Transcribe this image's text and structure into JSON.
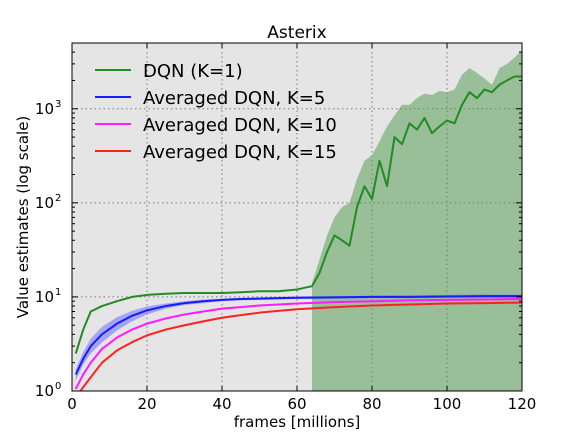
{
  "chart_data": {
    "type": "line",
    "title": "Asterix",
    "xlabel": "frames [millions]",
    "ylabel": "Value estimates (log scale)",
    "xlim": [
      0,
      120
    ],
    "ylim": [
      1,
      5000
    ],
    "yscale": "log",
    "grid": true,
    "legend_position": "top-left",
    "background_color": "#e5e5e5",
    "x_ticks": [
      0,
      20,
      40,
      60,
      80,
      100,
      120
    ],
    "x_tick_labels": [
      "0",
      "20",
      "40",
      "60",
      "80",
      "100",
      "120"
    ],
    "y_ticks": [
      1,
      10,
      100,
      1000
    ],
    "y_tick_labels": [
      {
        "base": "10",
        "exp": "0"
      },
      {
        "base": "10",
        "exp": "1"
      },
      {
        "base": "10",
        "exp": "2"
      },
      {
        "base": "10",
        "exp": "3"
      }
    ],
    "series": [
      {
        "name": "DQN (K=1)",
        "color": "#228b22",
        "band_color": "#4c9a4c",
        "x": [
          1,
          3,
          5,
          8,
          12,
          16,
          20,
          25,
          30,
          35,
          40,
          45,
          50,
          55,
          60,
          62,
          64,
          66,
          68,
          70,
          72,
          74,
          76,
          78,
          80,
          82,
          84,
          86,
          88,
          90,
          92,
          94,
          96,
          98,
          100,
          102,
          104,
          106,
          108,
          110,
          112,
          114,
          116,
          118,
          120
        ],
        "values": [
          2.5,
          4.5,
          7,
          8,
          9,
          10,
          10.5,
          10.8,
          11,
          11,
          11,
          11.2,
          11.5,
          11.5,
          12,
          12.5,
          13,
          18,
          30,
          45,
          40,
          35,
          90,
          150,
          110,
          280,
          150,
          500,
          420,
          700,
          600,
          800,
          550,
          650,
          750,
          700,
          1100,
          1500,
          1300,
          1600,
          1500,
          1800,
          2000,
          2200,
          2200
        ],
        "band_x": [
          64,
          66,
          68,
          70,
          72,
          74,
          76,
          78,
          80,
          82,
          84,
          86,
          88,
          90,
          92,
          94,
          96,
          98,
          100,
          102,
          104,
          106,
          108,
          110,
          112,
          114,
          116,
          118,
          120
        ],
        "band_upper": [
          14,
          25,
          45,
          70,
          90,
          100,
          180,
          280,
          320,
          450,
          650,
          850,
          1100,
          1100,
          1300,
          1450,
          1400,
          1550,
          1500,
          1600,
          2300,
          2700,
          2400,
          2100,
          1800,
          2700,
          3000,
          3500,
          4200
        ],
        "band_lower": [
          1,
          1,
          1,
          1,
          1,
          1,
          1,
          1,
          1,
          1,
          1,
          1,
          1,
          1,
          1,
          1,
          1,
          1,
          1,
          1,
          1,
          1,
          1,
          1,
          1,
          1,
          1,
          1,
          1
        ]
      },
      {
        "name": "Averaged DQN, K=5",
        "color": "#1a1aff",
        "band_color": "#7070ff",
        "x": [
          1,
          3,
          5,
          8,
          12,
          16,
          20,
          25,
          30,
          35,
          40,
          45,
          50,
          55,
          60,
          70,
          80,
          90,
          100,
          110,
          120
        ],
        "values": [
          1.5,
          2.2,
          3,
          4,
          5.2,
          6.3,
          7.2,
          8,
          8.6,
          9,
          9.3,
          9.5,
          9.6,
          9.7,
          9.8,
          9.9,
          10,
          10,
          10.1,
          10.2,
          10.2
        ],
        "band_x": [
          1,
          3,
          5,
          8,
          12,
          16,
          20,
          25,
          30,
          35,
          40,
          45,
          50,
          55,
          60,
          70,
          80,
          90,
          100,
          110,
          120
        ],
        "band_upper": [
          1.7,
          2.6,
          3.6,
          4.8,
          6.1,
          7.1,
          7.9,
          8.5,
          9,
          9.4,
          9.6,
          9.8,
          9.9,
          10,
          10.1,
          10.2,
          10.3,
          10.4,
          10.5,
          10.6,
          10.6
        ],
        "band_lower": [
          1.3,
          1.9,
          2.5,
          3.3,
          4.4,
          5.5,
          6.5,
          7.5,
          8.2,
          8.6,
          9,
          9.2,
          9.3,
          9.4,
          9.5,
          9.6,
          9.7,
          9.7,
          9.8,
          9.8,
          9.8
        ]
      },
      {
        "name": "Averaged DQN, K=10",
        "color": "#ff1aff",
        "x": [
          1,
          3,
          5,
          8,
          12,
          16,
          20,
          25,
          30,
          35,
          40,
          45,
          50,
          55,
          60,
          70,
          80,
          90,
          100,
          110,
          120
        ],
        "values": [
          1.05,
          1.5,
          2,
          2.8,
          3.7,
          4.5,
          5.2,
          5.9,
          6.5,
          7,
          7.5,
          7.8,
          8.1,
          8.3,
          8.5,
          8.8,
          9,
          9.2,
          9.3,
          9.4,
          9.5
        ]
      },
      {
        "name": "Averaged DQN, K=15",
        "color": "#ff2020",
        "x": [
          1,
          3,
          5,
          8,
          12,
          16,
          20,
          25,
          30,
          35,
          40,
          45,
          50,
          55,
          60,
          70,
          80,
          90,
          100,
          110,
          120
        ],
        "values": [
          0.85,
          1.1,
          1.4,
          2,
          2.7,
          3.3,
          3.9,
          4.5,
          5,
          5.5,
          6,
          6.4,
          6.8,
          7.1,
          7.4,
          7.8,
          8.1,
          8.3,
          8.5,
          8.6,
          8.7
        ]
      }
    ]
  }
}
